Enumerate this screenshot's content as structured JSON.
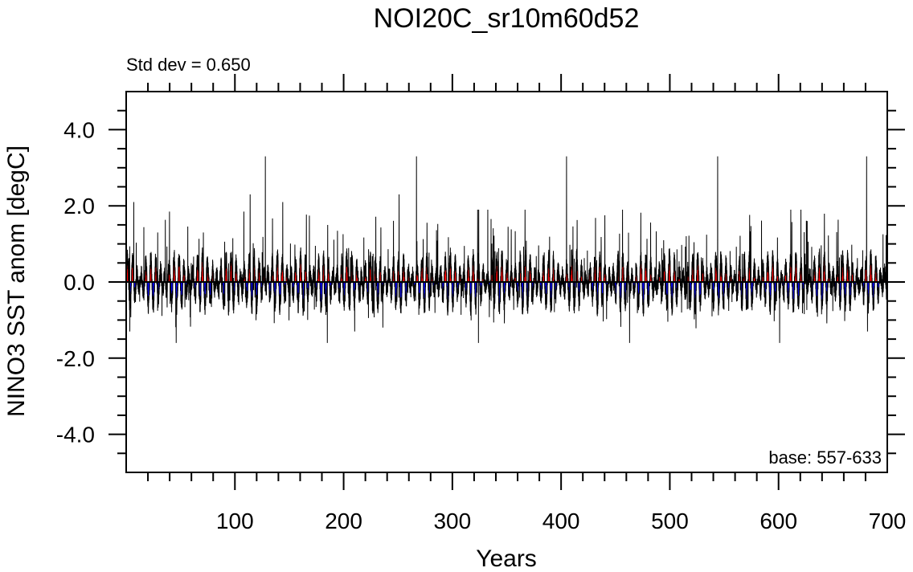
{
  "chart_data": {
    "type": "area",
    "title": "NOI20C_sr10m60d52",
    "xlabel": "Years",
    "ylabel": "NINO3 SST anom [degC]",
    "annotation_top_left": "Std dev = 0.650",
    "annotation_bottom_right": "base: 557-633",
    "xlim": [
      0,
      700
    ],
    "ylim": [
      -5,
      5
    ],
    "x_ticks": [
      100,
      200,
      300,
      400,
      500,
      600,
      700
    ],
    "y_ticks": [
      -4,
      -2,
      0,
      2,
      4
    ],
    "y_tick_labels": [
      "-4.0",
      "-2.0",
      "0.0",
      "2.0",
      "4.0"
    ],
    "samples_per_year": 12,
    "colors": {
      "positive": "#ff0000",
      "negative": "#0000ff",
      "line": "#000000"
    },
    "annual_extremes": {
      "years": [
        7,
        29,
        46,
        71,
        114,
        128,
        144,
        185,
        251,
        267,
        324,
        405,
        463,
        544,
        601,
        681
      ],
      "values": [
        2.1,
        1.3,
        -1.6,
        1.3,
        2.3,
        3.3,
        2.1,
        -1.6,
        2.3,
        3.3,
        -1.6,
        3.3,
        -1.6,
        3.3,
        -1.6,
        3.3
      ]
    }
  }
}
